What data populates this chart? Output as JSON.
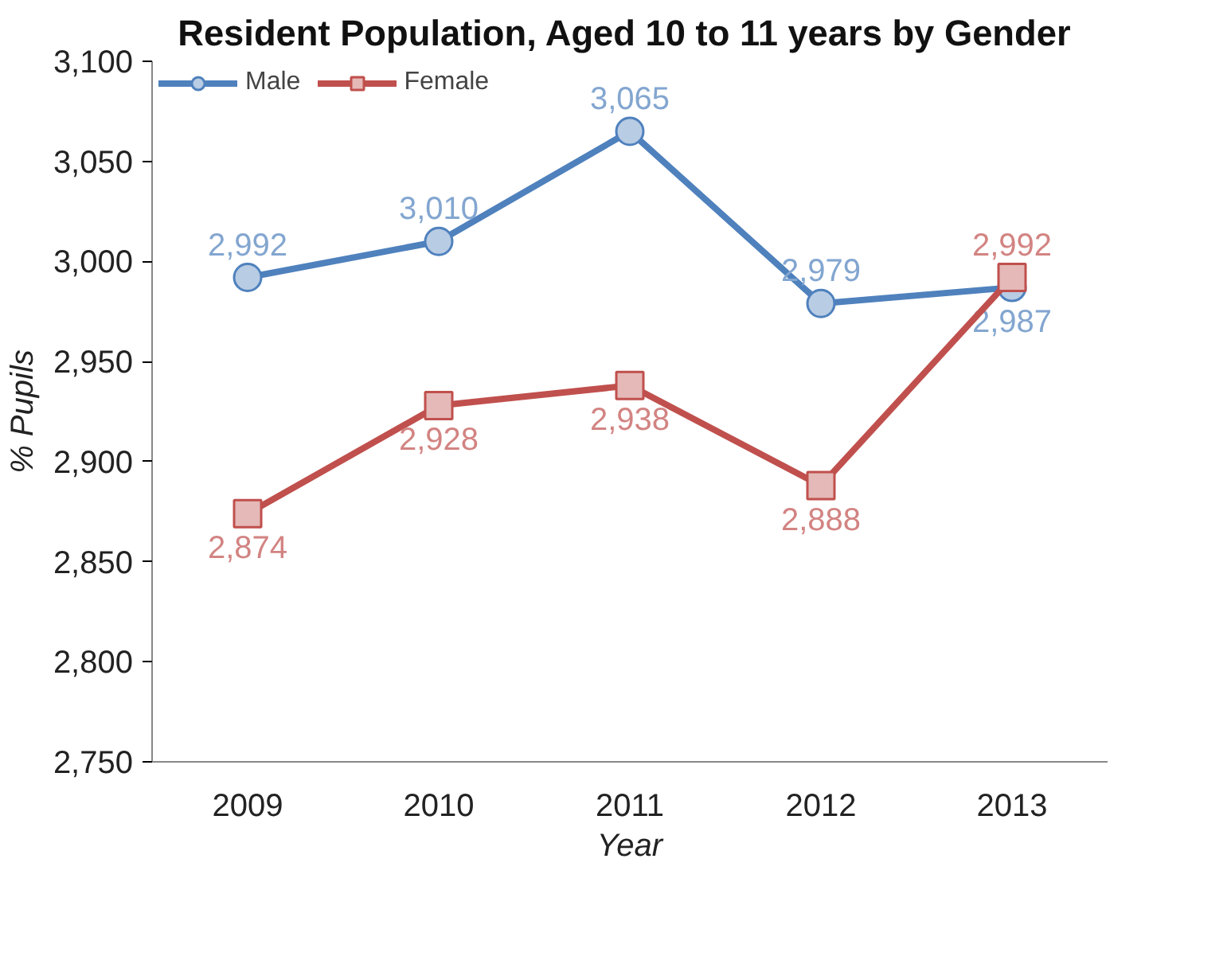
{
  "chart_data": {
    "type": "line",
    "title": "Resident Population,  Aged 10 to 11 years by Gender",
    "xlabel": "Year",
    "ylabel": "% Pupils",
    "categories": [
      "2009",
      "2010",
      "2011",
      "2012",
      "2013"
    ],
    "series": [
      {
        "name": "Male",
        "color": "#4f81bd",
        "marker": "circle",
        "values": [
          2992,
          3010,
          3065,
          2979,
          2987
        ],
        "value_labels": [
          "2,992",
          "3,010",
          "3,065",
          "2,979",
          "2,987"
        ]
      },
      {
        "name": "Female",
        "color": "#c0504d",
        "marker": "square",
        "values": [
          2874,
          2928,
          2938,
          2888,
          2992
        ],
        "value_labels": [
          "2,874",
          "2,928",
          "2,938",
          "2,888",
          "2,992"
        ]
      }
    ],
    "ylim": [
      2750,
      3100
    ],
    "yticks": [
      {
        "value": 2750,
        "label": "2,750"
      },
      {
        "value": 2800,
        "label": "2,800"
      },
      {
        "value": 2850,
        "label": "2,850"
      },
      {
        "value": 2900,
        "label": "2,900"
      },
      {
        "value": 2950,
        "label": "2,950"
      },
      {
        "value": 3000,
        "label": "3,000"
      },
      {
        "value": 3050,
        "label": "3,050"
      },
      {
        "value": 3100,
        "label": "3,100"
      }
    ],
    "grid": false,
    "legend": "top left",
    "line_style": "solid"
  }
}
